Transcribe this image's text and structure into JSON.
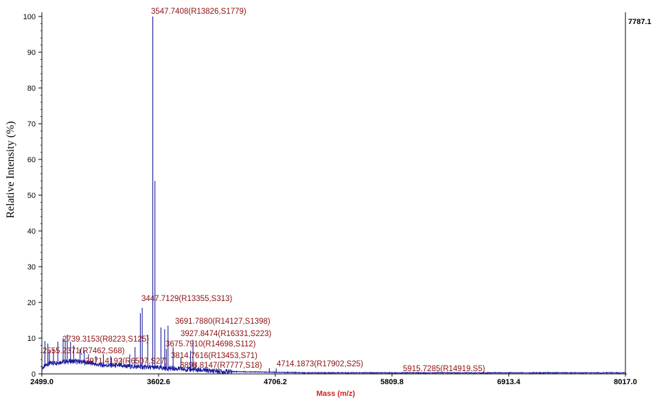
{
  "chart_data": {
    "type": "line",
    "title": "",
    "xlabel": "Mass (m/z)",
    "ylabel": "Relative Intensity (%)",
    "xlim": [
      2499.0,
      8017.0
    ],
    "ylim": [
      0,
      100
    ],
    "max_intensity_label": "7787.1",
    "x_ticks": [
      "2499.0",
      "3602.6",
      "4706.2",
      "5809.8",
      "6913.4",
      "8017.0"
    ],
    "x_tick_values": [
      2499.0,
      3602.6,
      4706.2,
      5809.8,
      6913.4,
      8017.0
    ],
    "y_ticks": [
      "0",
      "10",
      "20",
      "30",
      "40",
      "50",
      "60",
      "70",
      "80",
      "90",
      "100"
    ],
    "y_tick_values": [
      0,
      10,
      20,
      30,
      40,
      50,
      60,
      70,
      80,
      90,
      100
    ],
    "line_color": "#1a1a9a",
    "label_color": "#8b1010",
    "xlabel_color": "#d42020",
    "peaks": [
      {
        "x": 3547.7408,
        "y": 100,
        "label": "3547.7408(R13826,S1779)"
      },
      {
        "x": 3447.7129,
        "y": 18.5,
        "label": "3447.7129(R13355,S313)"
      },
      {
        "x": 3691.788,
        "y": 13.5,
        "label": "3691.7880(R14127,S1398)"
      },
      {
        "x": 3927.8474,
        "y": 9.5,
        "label": "3927.8474(R16331,S223)"
      },
      {
        "x": 2739.3153,
        "y": 11,
        "label": "2739.3153(R8223,S125)"
      },
      {
        "x": 3675.791,
        "y": 7,
        "label": "3675.7910(R14698,S112)"
      },
      {
        "x": 2555.2371,
        "y": 8.5,
        "label": "2555.2371(R7462,S68)"
      },
      {
        "x": 3814.7616,
        "y": 4.5,
        "label": "3814.7616(R13453,S71)"
      },
      {
        "x": 2971.4192,
        "y": 3.5,
        "label": "2971.4192(R6507,S27)"
      },
      {
        "x": 3898.8147,
        "y": 2,
        "label": "3898.8147(R7777,S18)"
      },
      {
        "x": 4714.1873,
        "y": 1.5,
        "label": "4714.1873(R17902,S25)"
      },
      {
        "x": 5915.7285,
        "y": 0.3,
        "label": "5915.7285(R14919,S5)"
      }
    ],
    "extra_peaks": [
      {
        "x": 3568,
        "y": 54
      },
      {
        "x": 3430,
        "y": 17
      },
      {
        "x": 3660,
        "y": 12.5
      },
      {
        "x": 3625,
        "y": 13
      },
      {
        "x": 3740,
        "y": 7.5
      },
      {
        "x": 3905,
        "y": 6.5
      },
      {
        "x": 3952,
        "y": 3
      },
      {
        "x": 2528,
        "y": 9.2
      },
      {
        "x": 2570,
        "y": 6.5
      },
      {
        "x": 2608,
        "y": 7
      },
      {
        "x": 2650,
        "y": 9
      },
      {
        "x": 2700,
        "y": 10
      },
      {
        "x": 2720,
        "y": 9.5
      },
      {
        "x": 2770,
        "y": 9
      },
      {
        "x": 2800,
        "y": 8
      },
      {
        "x": 2860,
        "y": 7
      },
      {
        "x": 2900,
        "y": 6.5
      },
      {
        "x": 2940,
        "y": 5.5
      },
      {
        "x": 3010,
        "y": 5
      },
      {
        "x": 3080,
        "y": 5.5
      },
      {
        "x": 3150,
        "y": 5
      },
      {
        "x": 3250,
        "y": 4.5
      },
      {
        "x": 3330,
        "y": 5.5
      },
      {
        "x": 3380,
        "y": 7.5
      },
      {
        "x": 3500,
        "y": 11
      },
      {
        "x": 4150,
        "y": 1.5
      },
      {
        "x": 4650,
        "y": 1.6
      }
    ]
  }
}
